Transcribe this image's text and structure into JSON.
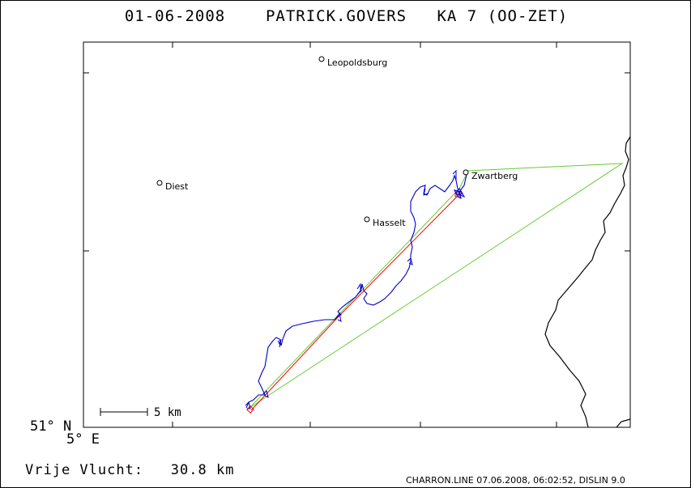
{
  "header": {
    "date": "01-06-2008",
    "pilot": "PATRICK.GOVERS",
    "glider": "KA 7 (OO-ZET)"
  },
  "map": {
    "lat_label": "51° N",
    "lon_label": "5° E",
    "scale_label": "5 km",
    "towns": [
      {
        "name": "Leopoldsburg"
      },
      {
        "name": "Diest"
      },
      {
        "name": "Hasselt"
      },
      {
        "name": "Zwartberg"
      }
    ],
    "colors": {
      "track": "#0000cc",
      "task_line": "#66cc33",
      "optimized_line": "#ff0000",
      "border": "#000000"
    }
  },
  "footer": {
    "distance_label": "Vrije Vlucht:",
    "distance_value": "30.8 km",
    "credit": "CHARRON.LINE 07.06.2008, 06:02:52, DISLIN 9.0"
  }
}
